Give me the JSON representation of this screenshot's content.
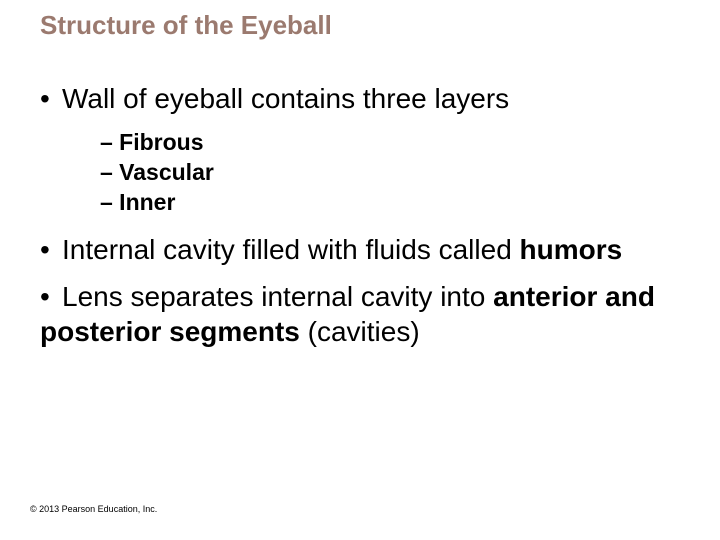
{
  "title": {
    "text": "Structure of the Eyeball",
    "color": "#9b7a6f"
  },
  "bullets": {
    "b1": "Wall of eyeball contains three layers",
    "sub1": "– Fibrous",
    "sub2": "– Vascular",
    "sub3": "– Inner",
    "b2_pre": "Internal cavity filled with fluids called ",
    "b2_bold": "humors",
    "b3_pre": "Lens separates internal cavity into ",
    "b3_bold": "anterior and posterior segments",
    "b3_post": " (cavities)"
  },
  "copyright": "© 2013 Pearson Education, Inc.",
  "colors": {
    "text": "#000000",
    "title": "#9b7a6f"
  }
}
